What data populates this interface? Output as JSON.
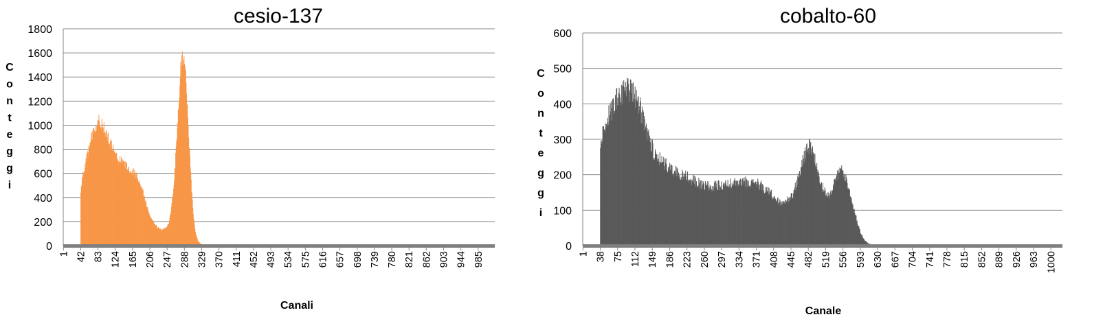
{
  "chart_data": [
    {
      "type": "bar",
      "title": "cesio-137",
      "xlabel": "Canali",
      "ylabel": "Conteggi",
      "ylabel_chars": [
        "C",
        "o",
        "n",
        "t",
        "e",
        "g",
        "g",
        "i"
      ],
      "ylim": [
        0,
        1800
      ],
      "yticks": [
        "0",
        "200",
        "400",
        "600",
        "800",
        "1000",
        "1200",
        "1400",
        "1600",
        "1800"
      ],
      "x_range": [
        1,
        1024
      ],
      "xtick_labels": [
        "1",
        "42",
        "83",
        "124",
        "165",
        "206",
        "247",
        "288",
        "329",
        "370",
        "411",
        "452",
        "493",
        "534",
        "575",
        "616",
        "657",
        "698",
        "739",
        "780",
        "821",
        "862",
        "903",
        "944",
        "985"
      ],
      "grid": true,
      "legend": "none",
      "color": "#f79646",
      "baseline_color": "#7f7f7f",
      "start_channel": 42,
      "profile": [
        [
          1,
          0
        ],
        [
          41,
          0
        ],
        [
          42,
          420
        ],
        [
          46,
          580
        ],
        [
          52,
          650
        ],
        [
          60,
          800
        ],
        [
          70,
          920
        ],
        [
          80,
          990
        ],
        [
          87,
          1050
        ],
        [
          93,
          1010
        ],
        [
          100,
          940
        ],
        [
          110,
          860
        ],
        [
          120,
          790
        ],
        [
          130,
          720
        ],
        [
          140,
          690
        ],
        [
          150,
          660
        ],
        [
          160,
          630
        ],
        [
          168,
          610
        ],
        [
          175,
          580
        ],
        [
          182,
          520
        ],
        [
          190,
          440
        ],
        [
          198,
          340
        ],
        [
          206,
          240
        ],
        [
          215,
          190
        ],
        [
          225,
          150
        ],
        [
          236,
          130
        ],
        [
          246,
          150
        ],
        [
          252,
          200
        ],
        [
          258,
          340
        ],
        [
          264,
          560
        ],
        [
          270,
          900
        ],
        [
          276,
          1300
        ],
        [
          281,
          1550
        ],
        [
          285,
          1590
        ],
        [
          289,
          1500
        ],
        [
          293,
          1250
        ],
        [
          298,
          900
        ],
        [
          304,
          520
        ],
        [
          309,
          250
        ],
        [
          314,
          110
        ],
        [
          320,
          40
        ],
        [
          326,
          15
        ],
        [
          340,
          6
        ],
        [
          1024,
          6
        ]
      ],
      "noise": 0.06
    },
    {
      "type": "bar",
      "title": "cobalto-60",
      "xlabel": "Canale",
      "ylabel": "Conteggi",
      "ylabel_chars": [
        "C",
        "o",
        "n",
        "t",
        "e",
        "g",
        "g",
        "i"
      ],
      "ylim": [
        0,
        600
      ],
      "yticks": [
        "0",
        "100",
        "200",
        "300",
        "400",
        "500",
        "600"
      ],
      "x_range": [
        1,
        1024
      ],
      "xtick_labels": [
        "1",
        "38",
        "75",
        "112",
        "149",
        "186",
        "223",
        "260",
        "297",
        "334",
        "371",
        "408",
        "445",
        "482",
        "519",
        "556",
        "593",
        "630",
        "667",
        "704",
        "741",
        "778",
        "815",
        "852",
        "889",
        "926",
        "963",
        "1000"
      ],
      "grid": true,
      "legend": "none",
      "color": "#595959",
      "baseline_color": "#7f7f7f",
      "start_channel": 38,
      "profile": [
        [
          1,
          0
        ],
        [
          37,
          0
        ],
        [
          38,
          300
        ],
        [
          45,
          330
        ],
        [
          55,
          360
        ],
        [
          65,
          400
        ],
        [
          75,
          420
        ],
        [
          90,
          440
        ],
        [
          100,
          440
        ],
        [
          110,
          430
        ],
        [
          120,
          400
        ],
        [
          130,
          350
        ],
        [
          140,
          310
        ],
        [
          150,
          270
        ],
        [
          160,
          250
        ],
        [
          170,
          235
        ],
        [
          180,
          225
        ],
        [
          190,
          215
        ],
        [
          200,
          210
        ],
        [
          210,
          200
        ],
        [
          220,
          195
        ],
        [
          230,
          190
        ],
        [
          240,
          180
        ],
        [
          250,
          175
        ],
        [
          260,
          172
        ],
        [
          270,
          168
        ],
        [
          280,
          168
        ],
        [
          290,
          170
        ],
        [
          300,
          172
        ],
        [
          310,
          174
        ],
        [
          320,
          176
        ],
        [
          330,
          176
        ],
        [
          340,
          178
        ],
        [
          350,
          180
        ],
        [
          360,
          178
        ],
        [
          370,
          176
        ],
        [
          380,
          170
        ],
        [
          390,
          160
        ],
        [
          400,
          150
        ],
        [
          410,
          138
        ],
        [
          420,
          125
        ],
        [
          430,
          120
        ],
        [
          440,
          130
        ],
        [
          450,
          150
        ],
        [
          460,
          190
        ],
        [
          470,
          240
        ],
        [
          478,
          275
        ],
        [
          486,
          280
        ],
        [
          494,
          255
        ],
        [
          502,
          210
        ],
        [
          510,
          170
        ],
        [
          518,
          150
        ],
        [
          526,
          140
        ],
        [
          534,
          160
        ],
        [
          542,
          195
        ],
        [
          550,
          215
        ],
        [
          556,
          205
        ],
        [
          562,
          185
        ],
        [
          570,
          150
        ],
        [
          578,
          110
        ],
        [
          586,
          70
        ],
        [
          594,
          35
        ],
        [
          602,
          15
        ],
        [
          610,
          6
        ],
        [
          618,
          3
        ],
        [
          630,
          3
        ],
        [
          1024,
          2
        ]
      ],
      "noise": 0.09
    }
  ]
}
